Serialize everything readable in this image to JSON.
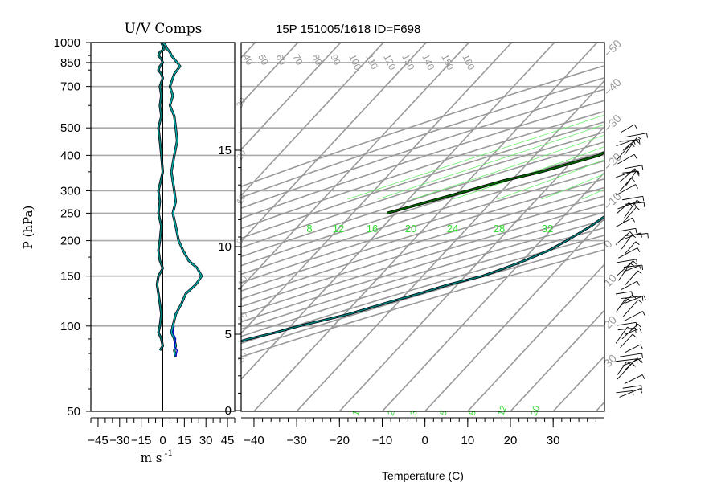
{
  "chart_data": [
    {
      "type": "line",
      "panel": "wind-components",
      "title": "U/V Comps",
      "xlabel": "m s",
      "xlabel_exponent": "-1",
      "ylabel": "P (hPa)",
      "xlim": [
        -50,
        50
      ],
      "x_ticks": [
        -45,
        -30,
        -15,
        0,
        15,
        30,
        45
      ],
      "x_tick_labels": [
        "−45",
        "−30",
        "−15",
        "0",
        "15",
        "30",
        "45"
      ],
      "y_scale": "log",
      "ylim": [
        1000,
        50
      ],
      "y_ticks": [
        1000,
        850,
        700,
        500,
        400,
        300,
        250,
        200,
        150,
        100,
        50
      ],
      "y_tick_labels": [
        "1000",
        "850",
        "700",
        "500",
        "400",
        "300",
        "250",
        "200",
        "150",
        "100",
        "50"
      ],
      "grid": "horizontal",
      "series": [
        {
          "color": "#008080",
          "x": [
            -1,
            0,
            1,
            -2,
            -3,
            -1,
            0,
            -2,
            -3,
            -1,
            0,
            -2,
            -1,
            -2,
            -1,
            -3,
            -2,
            -1,
            0,
            -3,
            -2,
            -3,
            -1,
            -2,
            -3,
            -2,
            0,
            -3,
            -4,
            -3,
            -2,
            -1,
            -2,
            -3,
            -1,
            0,
            -2
          ],
          "y": [
            1000,
            975,
            950,
            925,
            900,
            875,
            850,
            825,
            800,
            775,
            750,
            700,
            650,
            600,
            550,
            500,
            450,
            400,
            350,
            300,
            275,
            250,
            225,
            200,
            185,
            170,
            160,
            150,
            140,
            130,
            120,
            110,
            100,
            95,
            90,
            85,
            82
          ]
        },
        {
          "color": "#00aaaa",
          "x": [
            0,
            2,
            3,
            5,
            6,
            8,
            10,
            12,
            10,
            8,
            7,
            5,
            7,
            5,
            8,
            9,
            10,
            8,
            6,
            8,
            9,
            7,
            9,
            11,
            14,
            18,
            24,
            27,
            23,
            16,
            13,
            9,
            7,
            6,
            8,
            9,
            8,
            9
          ],
          "y": [
            1000,
            975,
            950,
            925,
            900,
            875,
            850,
            825,
            800,
            775,
            750,
            700,
            650,
            600,
            550,
            500,
            450,
            400,
            350,
            300,
            275,
            250,
            225,
            200,
            185,
            170,
            160,
            150,
            140,
            130,
            120,
            110,
            100,
            95,
            90,
            85,
            82,
            78
          ]
        },
        {
          "color": "#0000cc",
          "x": [
            8,
            7,
            9,
            8,
            10,
            9
          ],
          "y": [
            100,
            95,
            90,
            85,
            82,
            78
          ]
        }
      ]
    },
    {
      "type": "line",
      "panel": "skew-t",
      "title": "15P 151005/1618 ID=F698",
      "xlabel": "Temperature (C)",
      "xlim": [
        -43,
        42
      ],
      "x_ticks": [
        -40,
        -30,
        -20,
        -10,
        0,
        10,
        20,
        30
      ],
      "x_tick_labels": [
        "−40",
        "−30",
        "−20",
        "−10",
        "0",
        "10",
        "20",
        "30"
      ],
      "y_scale": "log",
      "ylim": [
        1000,
        50
      ],
      "height_km_labels": [
        "0",
        "5",
        "10",
        "15"
      ],
      "isotherm_labels": [
        "−50",
        "−40",
        "−30",
        "−20",
        "−10",
        "0",
        "10",
        "20",
        "30"
      ],
      "dry_adiabat_labels": [
        "40",
        "50",
        "60",
        "70",
        "80",
        "90",
        "100",
        "110",
        "120",
        "130",
        "140",
        "150",
        "160"
      ],
      "mixing_ratio_labels": [
        "8",
        "12",
        "16",
        "20",
        "24",
        "28",
        "32"
      ],
      "mixing_ratio_bottom_labels": [
        "1",
        "2",
        "3",
        "5",
        "8",
        "12",
        "20"
      ],
      "skewt_grid": true,
      "series": [
        {
          "name": "",
          "color": "#008080",
          "temperature_c": [
            26,
            25,
            24,
            21.5,
            21,
            20.5,
            19,
            17.5,
            17,
            16,
            15,
            14,
            12.5,
            11,
            9,
            7,
            5,
            4,
            3,
            2,
            1,
            0,
            -1.5,
            -4,
            -6,
            -9.5,
            -12.5,
            -16,
            -22,
            -27,
            -33,
            -39,
            -48,
            -52,
            -57,
            -61,
            -67,
            -72,
            -77,
            -81,
            -82
          ],
          "pressure_hpa": [
            1000,
            975,
            950,
            925,
            900,
            875,
            850,
            825,
            800,
            775,
            750,
            700,
            650,
            600,
            550,
            500,
            450,
            400,
            350,
            300,
            275,
            250,
            225,
            200,
            185,
            170,
            160,
            150,
            140,
            130,
            120,
            110,
            100,
            95,
            90,
            85,
            80,
            75,
            70,
            65,
            62
          ]
        },
        {
          "name": "",
          "color": "#006400",
          "temperature_c": [
            22,
            20,
            17,
            15,
            12,
            15,
            13,
            9,
            5,
            -2,
            -8,
            -12,
            -15,
            -25,
            -32,
            -38,
            -52
          ],
          "pressure_hpa": [
            1000,
            950,
            900,
            850,
            800,
            750,
            700,
            650,
            600,
            550,
            500,
            450,
            400,
            350,
            325,
            300,
            250
          ]
        }
      ],
      "wind_barbs": true
    }
  ]
}
